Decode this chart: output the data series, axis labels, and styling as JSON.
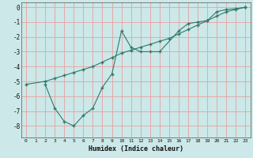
{
  "title": "",
  "xlabel": "Humidex (Indice chaleur)",
  "bg_color": "#cce8e8",
  "grid_color": "#e8a0a0",
  "line_color": "#2d7a6e",
  "xlim": [
    -0.5,
    23.5
  ],
  "ylim": [
    -8.8,
    0.3
  ],
  "yticks": [
    0,
    -1,
    -2,
    -3,
    -4,
    -5,
    -6,
    -7,
    -8
  ],
  "xticks": [
    0,
    1,
    2,
    3,
    4,
    5,
    6,
    7,
    8,
    9,
    10,
    11,
    12,
    13,
    14,
    15,
    16,
    17,
    18,
    19,
    20,
    21,
    22,
    23
  ],
  "line1_x": [
    0,
    2,
    3,
    4,
    5,
    6,
    7,
    8,
    9,
    10,
    11,
    12,
    13,
    14,
    15,
    16,
    17,
    18,
    19,
    20,
    21,
    22,
    23
  ],
  "line1_y": [
    -5.2,
    -5.0,
    -4.8,
    -4.6,
    -4.4,
    -4.2,
    -4.0,
    -3.7,
    -3.4,
    -3.1,
    -2.9,
    -2.7,
    -2.5,
    -2.3,
    -2.1,
    -1.8,
    -1.5,
    -1.2,
    -0.9,
    -0.6,
    -0.3,
    -0.15,
    0.0
  ],
  "line2_x": [
    2,
    3,
    4,
    5,
    6,
    7,
    8,
    9,
    10,
    11,
    12,
    13,
    14,
    16,
    17,
    18,
    19,
    20,
    21,
    22,
    23
  ],
  "line2_y": [
    -5.2,
    -6.8,
    -7.7,
    -8.0,
    -7.3,
    -6.8,
    -5.4,
    -4.5,
    -1.6,
    -2.7,
    -3.0,
    -3.0,
    -3.0,
    -1.6,
    -1.1,
    -1.0,
    -0.9,
    -0.3,
    -0.15,
    -0.1,
    0.0
  ]
}
